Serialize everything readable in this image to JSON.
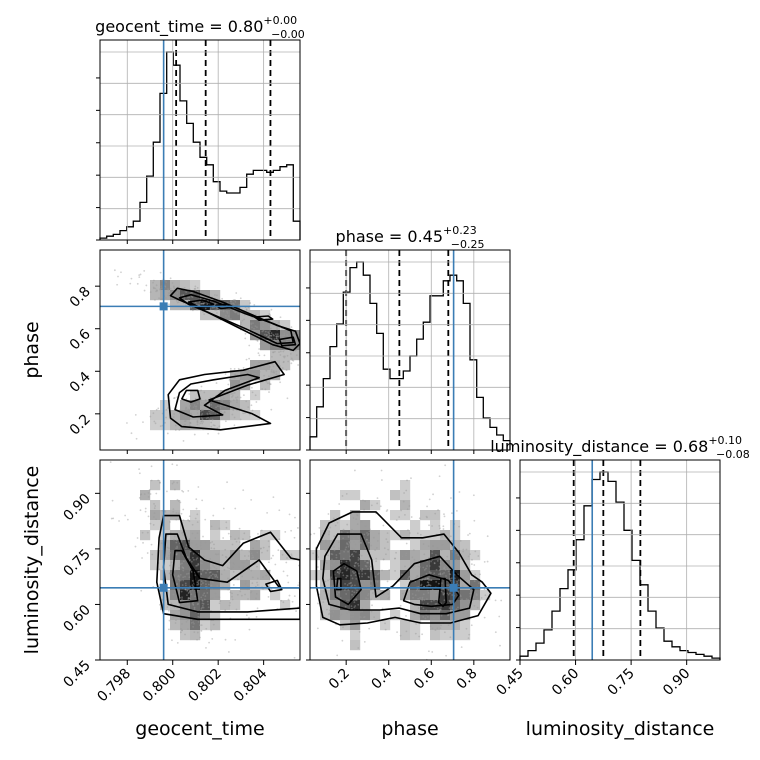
{
  "chart_data": {
    "type": "corner",
    "parameters": [
      "geocent_time",
      "phase",
      "luminosity_distance"
    ],
    "axis_labels": {
      "geocent_time": "geocent_time",
      "phase": "phase",
      "luminosity_distance": "luminosity_distance"
    },
    "ranges": {
      "geocent_time": [
        0.7968,
        0.8056
      ],
      "phase": [
        0.03,
        0.97
      ],
      "luminosity_distance": [
        0.45,
        0.99
      ]
    },
    "ticks": {
      "geocent_time": [
        {
          "v": 0.798,
          "label": "0.798"
        },
        {
          "v": 0.8,
          "label": "0.800"
        },
        {
          "v": 0.802,
          "label": "0.802"
        },
        {
          "v": 0.804,
          "label": "0.804"
        }
      ],
      "phase": [
        {
          "v": 0.2,
          "label": "0.2"
        },
        {
          "v": 0.4,
          "label": "0.4"
        },
        {
          "v": 0.6,
          "label": "0.6"
        },
        {
          "v": 0.8,
          "label": "0.8"
        }
      ],
      "luminosity_distance": [
        {
          "v": 0.45,
          "label": "0.45"
        },
        {
          "v": 0.6,
          "label": "0.60"
        },
        {
          "v": 0.75,
          "label": "0.75"
        },
        {
          "v": 0.9,
          "label": "0.90"
        }
      ]
    },
    "truths": {
      "geocent_time": 0.7996,
      "phase": 0.705,
      "luminosity_distance": 0.645
    },
    "titles": {
      "geocent_time": {
        "name": "geocent_time",
        "median": "0.80",
        "plus": "+0.00",
        "minus": "−0.00"
      },
      "phase": {
        "name": "phase",
        "median": "0.45",
        "plus": "+0.23",
        "minus": "−0.25"
      },
      "luminosity_distance": {
        "name": "luminosity_distance",
        "median": "0.68",
        "plus": "+0.10",
        "minus": "−0.08"
      }
    },
    "quantiles": {
      "geocent_time": [
        0.80015,
        0.80145,
        0.8043
      ],
      "phase": [
        0.2,
        0.45,
        0.68
      ],
      "luminosity_distance": [
        0.595,
        0.675,
        0.775
      ]
    },
    "histograms": {
      "geocent_time": {
        "edges_range": [
          0.7968,
          0.8056
        ],
        "counts": [
          0.01,
          0.02,
          0.03,
          0.05,
          0.07,
          0.1,
          0.2,
          0.34,
          0.52,
          0.78,
          1.0,
          0.93,
          0.74,
          0.62,
          0.52,
          0.44,
          0.4,
          0.31,
          0.26,
          0.25,
          0.25,
          0.28,
          0.35,
          0.37,
          0.37,
          0.36,
          0.37,
          0.39,
          0.4,
          0.1
        ]
      },
      "phase": {
        "edges_range": [
          0.03,
          0.97
        ],
        "counts": [
          0.07,
          0.23,
          0.38,
          0.55,
          0.67,
          0.84,
          0.97,
          1.0,
          0.93,
          0.78,
          0.62,
          0.43,
          0.38,
          0.38,
          0.42,
          0.5,
          0.59,
          0.68,
          0.82,
          0.82,
          0.9,
          0.93,
          0.9,
          0.78,
          0.48,
          0.28,
          0.17,
          0.12,
          0.08,
          0.05
        ]
      },
      "luminosity_distance": {
        "edges_range": [
          0.45,
          0.99
        ],
        "counts": [
          0.02,
          0.05,
          0.09,
          0.16,
          0.26,
          0.38,
          0.48,
          0.64,
          0.82,
          0.96,
          1.0,
          0.95,
          0.84,
          0.69,
          0.53,
          0.4,
          0.26,
          0.17,
          0.1,
          0.07,
          0.05,
          0.04,
          0.03,
          0.02,
          0.01
        ]
      }
    },
    "sample_clusters": {
      "geocent_time|phase": [
        {
          "cx": 0.8013,
          "cy": 0.728,
          "sx": 0.0015,
          "sy": 0.055,
          "rho": -0.85,
          "n": 520
        },
        {
          "cx": 0.8045,
          "cy": 0.555,
          "sx": 0.0007,
          "sy": 0.035,
          "rho": -0.6,
          "n": 260
        },
        {
          "cx": 0.8015,
          "cy": 0.215,
          "sx": 0.0013,
          "sy": 0.05,
          "rho": 0.45,
          "n": 420
        },
        {
          "cx": 0.8037,
          "cy": 0.385,
          "sx": 0.001,
          "sy": 0.06,
          "rho": 0.7,
          "n": 240
        }
      ],
      "geocent_time|luminosity_distance": [
        {
          "cx": 0.8008,
          "cy": 0.66,
          "sx": 0.0007,
          "sy": 0.075,
          "rho": -0.2,
          "n": 620
        },
        {
          "cx": 0.8033,
          "cy": 0.705,
          "sx": 0.0014,
          "sy": 0.085,
          "rho": -0.1,
          "n": 420
        },
        {
          "cx": 0.7995,
          "cy": 0.84,
          "sx": 0.0012,
          "sy": 0.08,
          "rho": -0.3,
          "n": 180
        }
      ],
      "phase|luminosity_distance": [
        {
          "cx": 0.22,
          "cy": 0.68,
          "sx": 0.07,
          "sy": 0.085,
          "rho": 0.0,
          "n": 560
        },
        {
          "cx": 0.64,
          "cy": 0.64,
          "sx": 0.1,
          "sy": 0.07,
          "rho": 0.0,
          "n": 600
        },
        {
          "cx": 0.45,
          "cy": 0.78,
          "sx": 0.2,
          "sy": 0.1,
          "rho": 0.0,
          "n": 300
        }
      ]
    },
    "contours": {
      "geocent_time|phase": [
        [
          [
            0.7999,
            0.755
          ],
          [
            0.8002,
            0.79
          ],
          [
            0.8009,
            0.775
          ],
          [
            0.8022,
            0.725
          ],
          [
            0.8035,
            0.665
          ],
          [
            0.8046,
            0.615
          ],
          [
            0.8054,
            0.588
          ],
          [
            0.8056,
            0.53
          ],
          [
            0.8053,
            0.498
          ],
          [
            0.8044,
            0.525
          ],
          [
            0.8028,
            0.61
          ],
          [
            0.8013,
            0.69
          ],
          [
            0.8003,
            0.735
          ]
        ],
        [
          [
            0.8003,
            0.745
          ],
          [
            0.8008,
            0.76
          ],
          [
            0.8018,
            0.73
          ],
          [
            0.8032,
            0.67
          ],
          [
            0.8044,
            0.625
          ],
          [
            0.8052,
            0.59
          ],
          [
            0.8053,
            0.535
          ],
          [
            0.8046,
            0.53
          ],
          [
            0.8032,
            0.6
          ],
          [
            0.8017,
            0.67
          ],
          [
            0.8007,
            0.715
          ]
        ],
        [
          [
            0.8007,
            0.725
          ],
          [
            0.8013,
            0.735
          ],
          [
            0.8018,
            0.715
          ],
          [
            0.8012,
            0.7
          ]
        ],
        [
          [
            0.8019,
            0.71
          ],
          [
            0.8024,
            0.715
          ],
          [
            0.8026,
            0.7
          ],
          [
            0.8021,
            0.695
          ]
        ],
        [
          [
            0.8036,
            0.655
          ],
          [
            0.8042,
            0.66
          ],
          [
            0.8044,
            0.645
          ],
          [
            0.8038,
            0.64
          ]
        ],
        [
          [
            0.8047,
            0.55
          ],
          [
            0.8053,
            0.56
          ],
          [
            0.8054,
            0.525
          ],
          [
            0.8048,
            0.52
          ]
        ],
        [
          [
            0.7999,
            0.18
          ],
          [
            0.7998,
            0.29
          ],
          [
            0.8003,
            0.36
          ],
          [
            0.8014,
            0.385
          ],
          [
            0.8031,
            0.405
          ],
          [
            0.8045,
            0.445
          ],
          [
            0.8049,
            0.385
          ],
          [
            0.8033,
            0.335
          ],
          [
            0.8016,
            0.265
          ],
          [
            0.8035,
            0.2
          ],
          [
            0.8043,
            0.155
          ],
          [
            0.8021,
            0.125
          ],
          [
            0.8004,
            0.14
          ]
        ],
        [
          [
            0.8001,
            0.22
          ],
          [
            0.8003,
            0.3
          ],
          [
            0.8008,
            0.34
          ],
          [
            0.8018,
            0.36
          ],
          [
            0.8033,
            0.385
          ],
          [
            0.8038,
            0.37
          ],
          [
            0.8023,
            0.31
          ],
          [
            0.8014,
            0.24
          ],
          [
            0.8022,
            0.195
          ],
          [
            0.8009,
            0.185
          ]
        ],
        [
          [
            0.8004,
            0.27
          ],
          [
            0.8006,
            0.31
          ],
          [
            0.8011,
            0.31
          ],
          [
            0.8012,
            0.27
          ],
          [
            0.8008,
            0.255
          ]
        ]
      ],
      "geocent_time|luminosity_distance": [
        [
          [
            0.7996,
            0.84
          ],
          [
            0.8003,
            0.84
          ],
          [
            0.8007,
            0.755
          ],
          [
            0.8014,
            0.72
          ],
          [
            0.8022,
            0.705
          ],
          [
            0.8031,
            0.765
          ],
          [
            0.8043,
            0.795
          ],
          [
            0.8052,
            0.725
          ],
          [
            0.8056,
            0.72
          ],
          [
            0.8056,
            0.56
          ],
          [
            0.8033,
            0.56
          ],
          [
            0.8011,
            0.56
          ],
          [
            0.7996,
            0.575
          ],
          [
            0.7993,
            0.66
          ],
          [
            0.7994,
            0.78
          ]
        ],
        [
          [
            0.7997,
            0.79
          ],
          [
            0.8002,
            0.79
          ],
          [
            0.8006,
            0.725
          ],
          [
            0.8012,
            0.67
          ],
          [
            0.8024,
            0.66
          ],
          [
            0.8038,
            0.72
          ],
          [
            0.8047,
            0.645
          ],
          [
            0.8056,
            0.645
          ],
          [
            0.8056,
            0.59
          ],
          [
            0.8033,
            0.58
          ],
          [
            0.8011,
            0.58
          ],
          [
            0.7998,
            0.6
          ],
          [
            0.7996,
            0.7
          ]
        ],
        [
          [
            0.8001,
            0.745
          ],
          [
            0.8004,
            0.745
          ],
          [
            0.8009,
            0.69
          ],
          [
            0.8011,
            0.61
          ],
          [
            0.8003,
            0.605
          ],
          [
            0.8,
            0.68
          ]
        ],
        [
          [
            0.8041,
            0.655
          ],
          [
            0.8046,
            0.665
          ],
          [
            0.8048,
            0.64
          ],
          [
            0.8043,
            0.635
          ]
        ]
      ],
      "phase|luminosity_distance": [
        [
          [
            0.06,
            0.75
          ],
          [
            0.12,
            0.82
          ],
          [
            0.23,
            0.85
          ],
          [
            0.34,
            0.85
          ],
          [
            0.46,
            0.78
          ],
          [
            0.56,
            0.78
          ],
          [
            0.66,
            0.79
          ],
          [
            0.73,
            0.74
          ],
          [
            0.79,
            0.68
          ],
          [
            0.84,
            0.66
          ],
          [
            0.88,
            0.63
          ],
          [
            0.82,
            0.57
          ],
          [
            0.69,
            0.55
          ],
          [
            0.55,
            0.55
          ],
          [
            0.43,
            0.565
          ],
          [
            0.3,
            0.55
          ],
          [
            0.17,
            0.545
          ],
          [
            0.09,
            0.565
          ],
          [
            0.06,
            0.65
          ]
        ],
        [
          [
            0.1,
            0.73
          ],
          [
            0.16,
            0.79
          ],
          [
            0.27,
            0.79
          ],
          [
            0.32,
            0.72
          ],
          [
            0.34,
            0.62
          ],
          [
            0.42,
            0.65
          ],
          [
            0.52,
            0.71
          ],
          [
            0.64,
            0.73
          ],
          [
            0.72,
            0.68
          ],
          [
            0.8,
            0.64
          ],
          [
            0.78,
            0.59
          ],
          [
            0.67,
            0.575
          ],
          [
            0.55,
            0.575
          ],
          [
            0.45,
            0.59
          ],
          [
            0.36,
            0.585
          ],
          [
            0.22,
            0.585
          ],
          [
            0.12,
            0.6
          ],
          [
            0.09,
            0.67
          ]
        ],
        [
          [
            0.14,
            0.69
          ],
          [
            0.19,
            0.71
          ],
          [
            0.25,
            0.69
          ],
          [
            0.27,
            0.64
          ],
          [
            0.21,
            0.6
          ],
          [
            0.15,
            0.62
          ]
        ],
        [
          [
            0.47,
            0.61
          ],
          [
            0.5,
            0.66
          ],
          [
            0.59,
            0.68
          ],
          [
            0.68,
            0.665
          ],
          [
            0.73,
            0.625
          ],
          [
            0.7,
            0.6
          ],
          [
            0.6,
            0.595
          ],
          [
            0.52,
            0.6
          ]
        ],
        [
          [
            0.635,
            0.605
          ],
          [
            0.645,
            0.67
          ],
          [
            0.665,
            0.67
          ],
          [
            0.67,
            0.605
          ],
          [
            0.655,
            0.595
          ]
        ],
        [
          [
            0.155,
            0.64
          ],
          [
            0.16,
            0.67
          ],
          [
            0.175,
            0.67
          ],
          [
            0.175,
            0.64
          ]
        ]
      ]
    }
  }
}
